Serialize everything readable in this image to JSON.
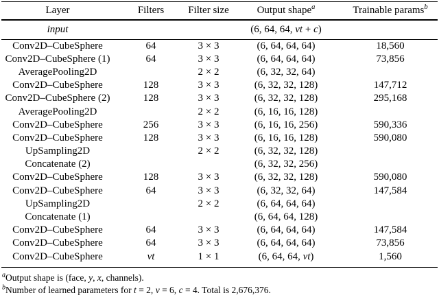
{
  "table": {
    "columns": [
      {
        "label": "Layer",
        "sup": ""
      },
      {
        "label": "Filters",
        "sup": ""
      },
      {
        "label": "Filter size",
        "sup": ""
      },
      {
        "label": "Output shape",
        "sup": "a"
      },
      {
        "label": "Trainable params",
        "sup": "b"
      }
    ],
    "input_row": {
      "layer": "input",
      "filters": "",
      "size": "",
      "shape": [
        "(6, 64, 64, ",
        "vt",
        " + ",
        "c",
        ")"
      ],
      "params": ""
    },
    "rows": [
      {
        "layer": "Conv2D–CubeSphere",
        "filters": "64",
        "size": "3 × 3",
        "shape": "(6, 64, 64, 64)",
        "params": "18,560"
      },
      {
        "layer": "Conv2D–CubeSphere (1)",
        "filters": "64",
        "size": "3 × 3",
        "shape": "(6, 64, 64, 64)",
        "params": "73,856"
      },
      {
        "layer": "AveragePooling2D",
        "filters": "",
        "size": "2 × 2",
        "shape": "(6, 32, 32, 64)",
        "params": ""
      },
      {
        "layer": "Conv2D–CubeSphere",
        "filters": "128",
        "size": "3 × 3",
        "shape": "(6, 32, 32, 128)",
        "params": "147,712"
      },
      {
        "layer": "Conv2D–CubeSphere (2)",
        "filters": "128",
        "size": "3 × 3",
        "shape": "(6, 32, 32, 128)",
        "params": "295,168"
      },
      {
        "layer": "AveragePooling2D",
        "filters": "",
        "size": "2 × 2",
        "shape": "(6, 16, 16, 128)",
        "params": ""
      },
      {
        "layer": "Conv2D–CubeSphere",
        "filters": "256",
        "size": "3 × 3",
        "shape": "(6, 16, 16, 256)",
        "params": "590,336"
      },
      {
        "layer": "Conv2D–CubeSphere",
        "filters": "128",
        "size": "3 × 3",
        "shape": "(6, 16, 16, 128)",
        "params": "590,080"
      },
      {
        "layer": "UpSampling2D",
        "filters": "",
        "size": "2 × 2",
        "shape": "(6, 32, 32, 128)",
        "params": ""
      },
      {
        "layer": "Concatenate (2)",
        "filters": "",
        "size": "",
        "shape": "(6, 32, 32, 256)",
        "params": ""
      },
      {
        "layer": "Conv2D–CubeSphere",
        "filters": "128",
        "size": "3 × 3",
        "shape": "(6, 32, 32, 128)",
        "params": "590,080"
      },
      {
        "layer": "Conv2D–CubeSphere",
        "filters": "64",
        "size": "3 × 3",
        "shape": "(6, 32, 32, 64)",
        "params": "147,584"
      },
      {
        "layer": "UpSampling2D",
        "filters": "",
        "size": "2 × 2",
        "shape": "(6, 64, 64, 64)",
        "params": ""
      },
      {
        "layer": "Concatenate (1)",
        "filters": "",
        "size": "",
        "shape": "(6, 64, 64, 128)",
        "params": ""
      },
      {
        "layer": "Conv2D–CubeSphere",
        "filters": "64",
        "size": "3 × 3",
        "shape": "(6, 64, 64, 64)",
        "params": "147,584"
      },
      {
        "layer": "Conv2D–CubeSphere",
        "filters": "64",
        "size": "3 × 3",
        "shape": "(6, 64, 64, 64)",
        "params": "73,856"
      },
      {
        "layer": "Conv2D–CubeSphere",
        "filters": [
          "",
          "vt",
          ""
        ],
        "size": "1 × 1",
        "shape": [
          "(6, 64, 64, ",
          "vt",
          ")"
        ],
        "params": "1,560"
      }
    ]
  },
  "footnotes": {
    "a": {
      "sup": "a",
      "parts": [
        "Output shape is (face, ",
        "y",
        ", ",
        "x",
        ", channels)."
      ]
    },
    "b": {
      "sup": "b",
      "parts": [
        "Number of learned parameters for ",
        "t",
        " = 2, ",
        "v",
        " = 6, ",
        "c",
        " = 4. Total is 2,676,376."
      ]
    }
  }
}
